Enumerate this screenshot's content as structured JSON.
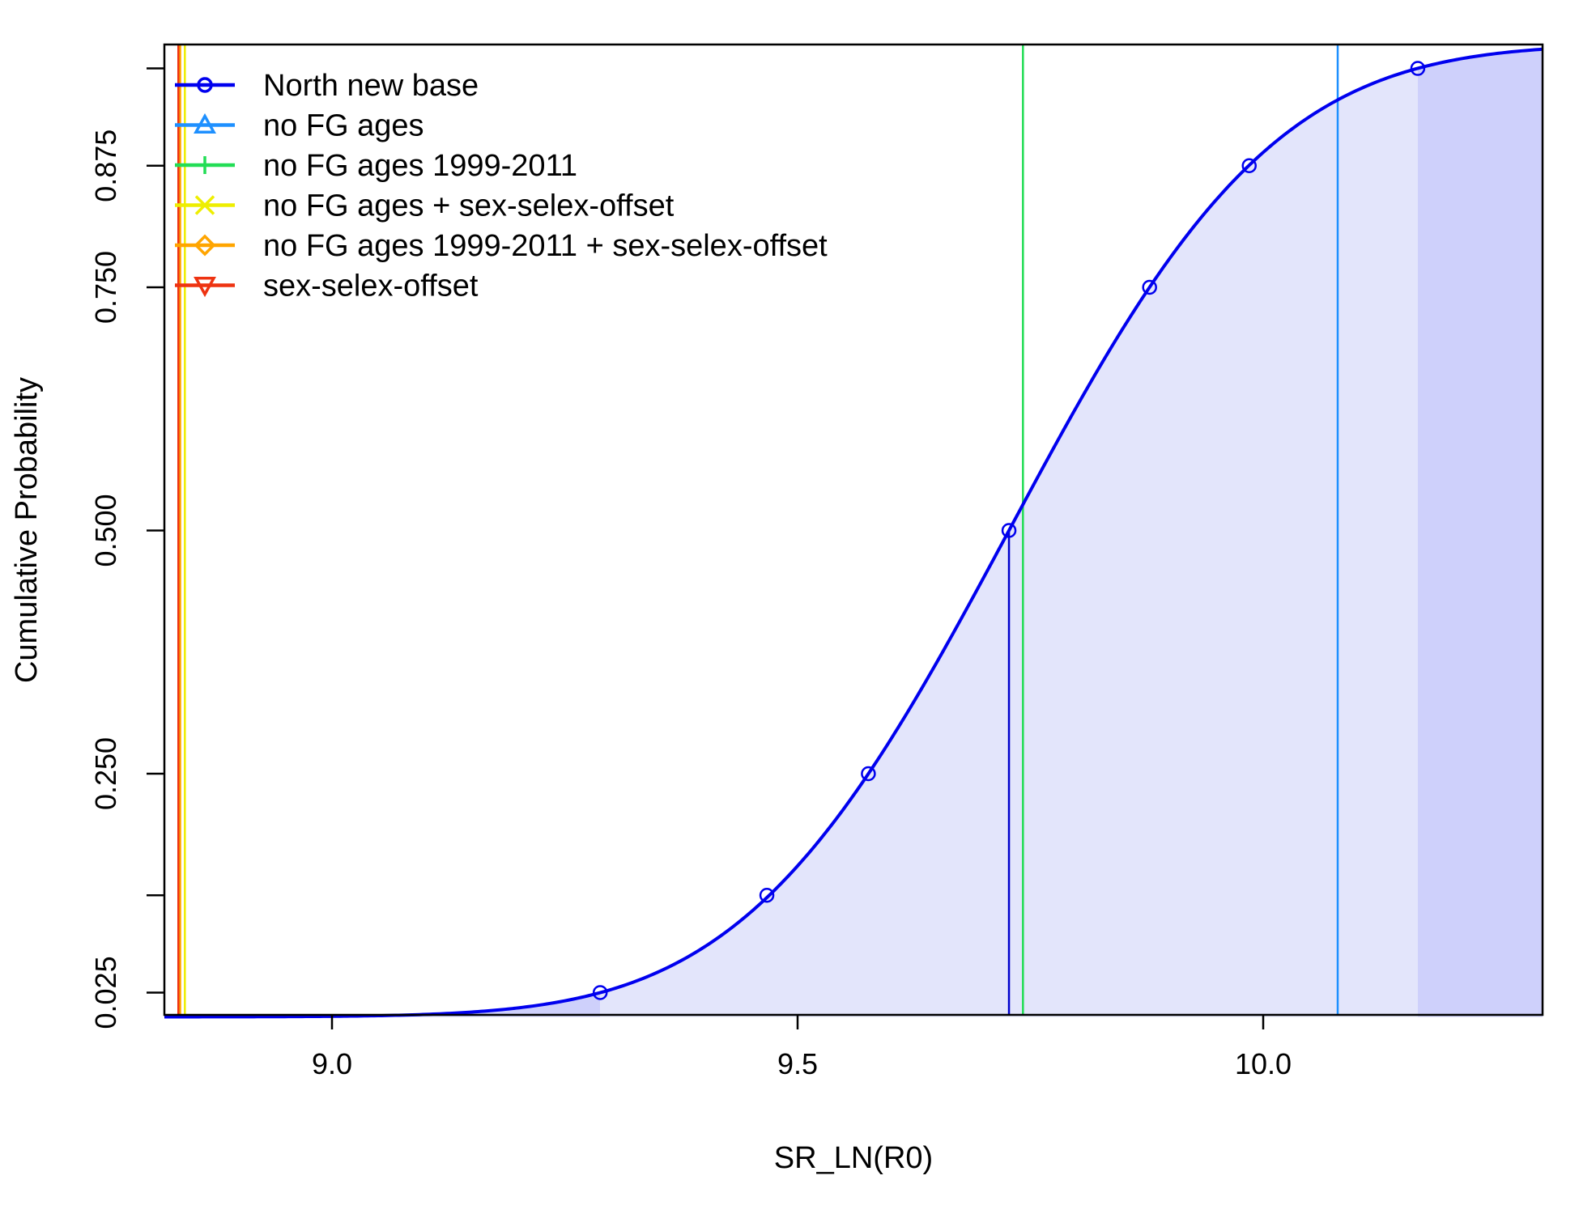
{
  "chart_data": {
    "type": "line",
    "title": "",
    "xlabel": "SR_LN(R0)",
    "ylabel": "Cumulative Probability",
    "xlim": [
      8.82,
      10.3
    ],
    "ylim": [
      0.0,
      1.0
    ],
    "x_ticks": [
      9.0,
      9.5,
      10.0
    ],
    "x_tick_labels": [
      "9.0",
      "9.5",
      "10.0"
    ],
    "y_ticks": [
      0.025,
      0.125,
      0.25,
      0.5,
      0.75,
      0.875,
      0.975
    ],
    "y_tick_labels": [
      "0.025",
      "",
      "0.250",
      "0.500",
      "0.750",
      "0.875",
      ""
    ],
    "grid": false,
    "legend_position": "top-left",
    "cdf": {
      "name": "North new base",
      "color": "#0000ee",
      "mean": 9.727,
      "sd": 0.2238,
      "x_start": 8.82,
      "x_end": 10.3,
      "interval_low": 9.288,
      "interval_high": 10.166,
      "quantile_points": [
        {
          "x": 9.288,
          "y": 0.025
        },
        {
          "x": 9.467,
          "y": 0.125
        },
        {
          "x": 9.576,
          "y": 0.25
        },
        {
          "x": 9.727,
          "y": 0.5
        },
        {
          "x": 9.878,
          "y": 0.75
        },
        {
          "x": 9.985,
          "y": 0.875
        },
        {
          "x": 10.166,
          "y": 0.975
        }
      ]
    },
    "vertical_lines": [
      {
        "name": "North new base",
        "x": 9.727,
        "y_top": 0.5,
        "color": "#0000cd"
      },
      {
        "name": "no FG ages",
        "x": 10.08,
        "color": "#1e90ff"
      },
      {
        "name": "no FG ages 1999-2011",
        "x": 9.742,
        "color": "#22dd55"
      },
      {
        "name": "no FG ages + sex-selex-offset",
        "x": 8.842,
        "color": "#eeee00"
      },
      {
        "name": "no FG ages 1999-2011 + sex-selex-offset",
        "x": 8.837,
        "color": "#ffa500"
      },
      {
        "name": "sex-selex-offset",
        "x": 8.835,
        "color": "#ee3311"
      }
    ],
    "legend": [
      {
        "label": "North new base",
        "color": "#0000ee",
        "marker": "circle"
      },
      {
        "label": "no FG ages",
        "color": "#1e90ff",
        "marker": "triangle-up"
      },
      {
        "label": "no FG ages 1999-2011",
        "color": "#22dd55",
        "marker": "plus"
      },
      {
        "label": "no FG ages + sex-selex-offset",
        "color": "#eeee00",
        "marker": "cross"
      },
      {
        "label": "no FG ages 1999-2011 + sex-selex-offset",
        "color": "#ffa500",
        "marker": "diamond"
      },
      {
        "label": "sex-selex-offset",
        "color": "#ee3311",
        "marker": "triangle-down"
      }
    ],
    "fill_colors": {
      "interval": "#e3e5fb",
      "tail": "#ced0fb"
    }
  }
}
